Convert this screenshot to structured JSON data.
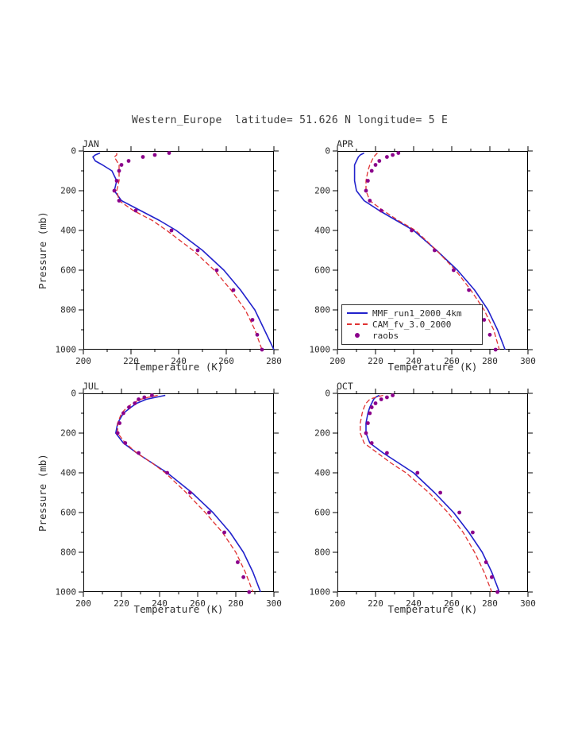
{
  "title": "Western_Europe  latitude= 51.626 N longitude= 5 E",
  "axes": {
    "xlabel": "Temperature (K)",
    "ylabel": "Pressure (mb)"
  },
  "colors": {
    "mmf_blue": "#2222cc",
    "cam_red": "#e03333",
    "raobs_purple": "#8b008b",
    "axis": "#000000",
    "text": "#2b2b2b"
  },
  "legend": {
    "entries": [
      {
        "label": "MMF_run1_2000_4km",
        "style": "solid",
        "color": "#2222cc"
      },
      {
        "label": "CAM_fv_3.0_2000",
        "style": "dashed",
        "color": "#e03333"
      },
      {
        "label": "raobs",
        "style": "dot",
        "color": "#8b008b"
      }
    ]
  },
  "chart_data": [
    {
      "type": "line",
      "panel": "JAN",
      "xlabel": "Temperature (K)",
      "ylabel": "Pressure (mb)",
      "xlim": [
        200,
        280
      ],
      "xticks": [
        200,
        220,
        240,
        260,
        280
      ],
      "xminor": 10,
      "ylim": [
        1000,
        0
      ],
      "yticks": [
        0,
        200,
        400,
        600,
        800,
        1000
      ],
      "yminor": 100,
      "y_axis_reversed": true,
      "series": [
        {
          "name": "MMF_run1_2000_4km",
          "style": "solid",
          "color": "#2222cc",
          "pressure": [
            10,
            20,
            30,
            50,
            70,
            100,
            150,
            200,
            250,
            300,
            350,
            400,
            500,
            600,
            700,
            800,
            900,
            1000
          ],
          "temperature": [
            207,
            205,
            204,
            205,
            208,
            212,
            214,
            213,
            216,
            224,
            232,
            239,
            250,
            259,
            266,
            272,
            276,
            280
          ]
        },
        {
          "name": "CAM_fv_3.0_2000",
          "style": "dashed",
          "color": "#e03333",
          "pressure": [
            10,
            20,
            30,
            50,
            70,
            100,
            150,
            200,
            250,
            300,
            350,
            400,
            500,
            600,
            700,
            800,
            900,
            1000
          ],
          "temperature": [
            214,
            214,
            213,
            214,
            215,
            215,
            215,
            214,
            215,
            221,
            229,
            235,
            246,
            255,
            262,
            268,
            272,
            275
          ]
        },
        {
          "name": "raobs",
          "style": "dots",
          "color": "#8b008b",
          "pressure": [
            10,
            20,
            30,
            50,
            70,
            100,
            150,
            200,
            250,
            300,
            400,
            500,
            600,
            700,
            850,
            925,
            1000
          ],
          "temperature": [
            236,
            230,
            225,
            219,
            216,
            215,
            214,
            213,
            215,
            222,
            237,
            248,
            256,
            263,
            271,
            273,
            275
          ]
        }
      ]
    },
    {
      "type": "line",
      "panel": "APR",
      "xlabel": "Temperature (K)",
      "ylabel": "Pressure (mb)",
      "xlim": [
        200,
        300
      ],
      "xticks": [
        200,
        220,
        240,
        260,
        280,
        300
      ],
      "xminor": 10,
      "ylim": [
        1000,
        0
      ],
      "yticks": [
        0,
        200,
        400,
        600,
        800,
        1000
      ],
      "yminor": 100,
      "y_axis_reversed": true,
      "series": [
        {
          "name": "MMF_run1_2000_4km",
          "style": "solid",
          "color": "#2222cc",
          "pressure": [
            10,
            20,
            30,
            50,
            70,
            100,
            150,
            200,
            250,
            300,
            350,
            400,
            500,
            600,
            700,
            800,
            900,
            1000
          ],
          "temperature": [
            214,
            212,
            211,
            210,
            209,
            209,
            209,
            210,
            214,
            222,
            231,
            240,
            252,
            263,
            272,
            279,
            284,
            288
          ]
        },
        {
          "name": "CAM_fv_3.0_2000",
          "style": "dashed",
          "color": "#e03333",
          "pressure": [
            10,
            20,
            30,
            50,
            70,
            100,
            150,
            200,
            250,
            300,
            350,
            400,
            500,
            600,
            700,
            800,
            900,
            1000
          ],
          "temperature": [
            221,
            220,
            219,
            218,
            217,
            216,
            215,
            215,
            217,
            224,
            232,
            241,
            252,
            262,
            270,
            277,
            282,
            285
          ]
        },
        {
          "name": "raobs",
          "style": "dots",
          "color": "#8b008b",
          "pressure": [
            10,
            20,
            30,
            50,
            70,
            100,
            150,
            200,
            250,
            300,
            400,
            500,
            600,
            700,
            850,
            925,
            1000
          ],
          "temperature": [
            232,
            229,
            226,
            222,
            220,
            218,
            216,
            215,
            217,
            223,
            239,
            251,
            261,
            269,
            277,
            280,
            283
          ]
        }
      ]
    },
    {
      "type": "line",
      "panel": "JUL",
      "xlabel": "Temperature (K)",
      "ylabel": "Pressure (mb)",
      "xlim": [
        200,
        300
      ],
      "xticks": [
        200,
        220,
        240,
        260,
        280,
        300
      ],
      "xminor": 10,
      "ylim": [
        1000,
        0
      ],
      "yticks": [
        0,
        200,
        400,
        600,
        800,
        1000
      ],
      "yminor": 100,
      "y_axis_reversed": true,
      "series": [
        {
          "name": "MMF_run1_2000_4km",
          "style": "solid",
          "color": "#2222cc",
          "pressure": [
            10,
            20,
            30,
            50,
            70,
            100,
            150,
            200,
            250,
            300,
            350,
            400,
            500,
            600,
            700,
            800,
            900,
            1000
          ],
          "temperature": [
            243,
            238,
            233,
            228,
            225,
            221,
            218,
            217,
            221,
            228,
            236,
            244,
            257,
            268,
            277,
            284,
            289,
            293
          ]
        },
        {
          "name": "CAM_fv_3.0_2000",
          "style": "dashed",
          "color": "#e03333",
          "pressure": [
            10,
            20,
            30,
            50,
            70,
            100,
            150,
            200,
            250,
            300,
            350,
            400,
            500,
            600,
            700,
            800,
            900,
            1000
          ],
          "temperature": [
            239,
            234,
            230,
            226,
            223,
            220,
            218,
            218,
            222,
            228,
            236,
            243,
            254,
            264,
            273,
            280,
            285,
            289
          ]
        },
        {
          "name": "raobs",
          "style": "dots",
          "color": "#8b008b",
          "pressure": [
            10,
            20,
            30,
            50,
            70,
            100,
            150,
            200,
            250,
            300,
            400,
            500,
            600,
            700,
            850,
            925,
            1000
          ],
          "temperature": [
            236,
            232,
            229,
            227,
            224,
            221,
            219,
            218,
            222,
            229,
            244,
            256,
            266,
            274,
            281,
            284,
            287
          ]
        }
      ]
    },
    {
      "type": "line",
      "panel": "OCT",
      "xlabel": "Temperature (K)",
      "ylabel": "Pressure (mb)",
      "xlim": [
        200,
        300
      ],
      "xticks": [
        200,
        220,
        240,
        260,
        280,
        300
      ],
      "xminor": 10,
      "ylim": [
        1000,
        0
      ],
      "yticks": [
        0,
        200,
        400,
        600,
        800,
        1000
      ],
      "yminor": 100,
      "y_axis_reversed": true,
      "series": [
        {
          "name": "MMF_run1_2000_4km",
          "style": "solid",
          "color": "#2222cc",
          "pressure": [
            10,
            20,
            30,
            50,
            70,
            100,
            150,
            200,
            250,
            300,
            350,
            400,
            500,
            600,
            700,
            800,
            900,
            1000
          ],
          "temperature": [
            222,
            220,
            219,
            218,
            217,
            216,
            215,
            215,
            217,
            224,
            232,
            240,
            251,
            261,
            269,
            276,
            281,
            285
          ]
        },
        {
          "name": "CAM_fv_3.0_2000",
          "style": "dashed",
          "color": "#e03333",
          "pressure": [
            10,
            20,
            30,
            50,
            70,
            100,
            150,
            200,
            250,
            300,
            350,
            400,
            500,
            600,
            700,
            800,
            900,
            1000
          ],
          "temperature": [
            224,
            220,
            217,
            215,
            214,
            213,
            212,
            212,
            214,
            221,
            228,
            236,
            248,
            258,
            266,
            272,
            277,
            281
          ]
        },
        {
          "name": "raobs",
          "style": "dots",
          "color": "#8b008b",
          "pressure": [
            10,
            20,
            30,
            50,
            70,
            100,
            150,
            200,
            250,
            300,
            400,
            500,
            600,
            700,
            850,
            925,
            1000
          ],
          "temperature": [
            229,
            226,
            223,
            220,
            218,
            217,
            216,
            215,
            218,
            226,
            242,
            254,
            264,
            271,
            278,
            281,
            284
          ]
        }
      ]
    }
  ]
}
